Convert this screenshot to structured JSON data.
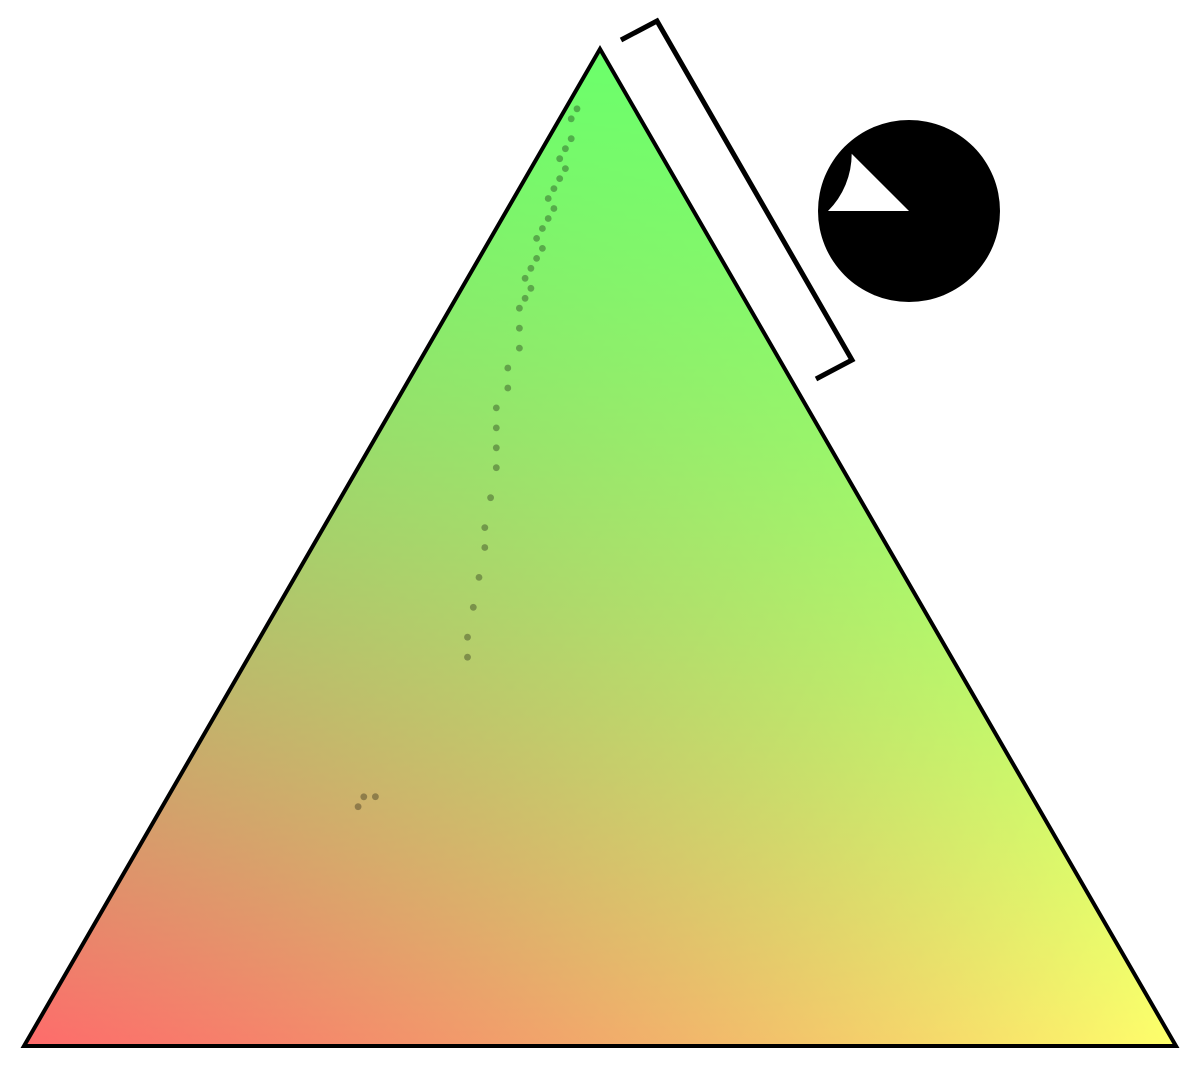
{
  "diagram": {
    "type": "ternary-scatter",
    "corner_colors": {
      "bottom_left": "#ff6b6b",
      "top": "#6bff6b",
      "bottom_right": "#ffff6b"
    },
    "outline_color": "#000000",
    "point_color": "#000000",
    "point_opacity": 0.3,
    "highlighted_edge": "top-right",
    "pie_fraction": 0.875,
    "pie_color": "#000000"
  },
  "chart_data": {
    "type": "scatter",
    "coordinate_system": "ternary",
    "components": [
      "top",
      "bottom-left",
      "bottom-right"
    ],
    "points": [
      {
        "top": 0.94,
        "left": 0.05,
        "right": 0.01
      },
      {
        "top": 0.93,
        "left": 0.06,
        "right": 0.01
      },
      {
        "top": 0.91,
        "left": 0.07,
        "right": 0.02
      },
      {
        "top": 0.9,
        "left": 0.08,
        "right": 0.02
      },
      {
        "top": 0.89,
        "left": 0.09,
        "right": 0.02
      },
      {
        "top": 0.88,
        "left": 0.09,
        "right": 0.03
      },
      {
        "top": 0.87,
        "left": 0.1,
        "right": 0.03
      },
      {
        "top": 0.86,
        "left": 0.11,
        "right": 0.03
      },
      {
        "top": 0.85,
        "left": 0.12,
        "right": 0.03
      },
      {
        "top": 0.84,
        "left": 0.12,
        "right": 0.04
      },
      {
        "top": 0.83,
        "left": 0.13,
        "right": 0.04
      },
      {
        "top": 0.82,
        "left": 0.14,
        "right": 0.04
      },
      {
        "top": 0.81,
        "left": 0.15,
        "right": 0.04
      },
      {
        "top": 0.8,
        "left": 0.15,
        "right": 0.05
      },
      {
        "top": 0.79,
        "left": 0.16,
        "right": 0.05
      },
      {
        "top": 0.78,
        "left": 0.17,
        "right": 0.05
      },
      {
        "top": 0.77,
        "left": 0.18,
        "right": 0.05
      },
      {
        "top": 0.76,
        "left": 0.18,
        "right": 0.06
      },
      {
        "top": 0.75,
        "left": 0.19,
        "right": 0.06
      },
      {
        "top": 0.74,
        "left": 0.2,
        "right": 0.06
      },
      {
        "top": 0.72,
        "left": 0.21,
        "right": 0.07
      },
      {
        "top": 0.7,
        "left": 0.22,
        "right": 0.08
      },
      {
        "top": 0.68,
        "left": 0.24,
        "right": 0.08
      },
      {
        "top": 0.66,
        "left": 0.25,
        "right": 0.09
      },
      {
        "top": 0.64,
        "left": 0.27,
        "right": 0.09
      },
      {
        "top": 0.62,
        "left": 0.28,
        "right": 0.1
      },
      {
        "top": 0.6,
        "left": 0.29,
        "right": 0.11
      },
      {
        "top": 0.58,
        "left": 0.3,
        "right": 0.12
      },
      {
        "top": 0.55,
        "left": 0.32,
        "right": 0.13
      },
      {
        "top": 0.52,
        "left": 0.34,
        "right": 0.14
      },
      {
        "top": 0.5,
        "left": 0.35,
        "right": 0.15
      },
      {
        "top": 0.47,
        "left": 0.37,
        "right": 0.16
      },
      {
        "top": 0.44,
        "left": 0.39,
        "right": 0.17
      },
      {
        "top": 0.41,
        "left": 0.41,
        "right": 0.18
      },
      {
        "top": 0.39,
        "left": 0.42,
        "right": 0.19
      },
      {
        "top": 0.25,
        "left": 0.58,
        "right": 0.17
      },
      {
        "top": 0.24,
        "left": 0.59,
        "right": 0.17
      },
      {
        "top": 0.25,
        "left": 0.57,
        "right": 0.18
      }
    ]
  }
}
